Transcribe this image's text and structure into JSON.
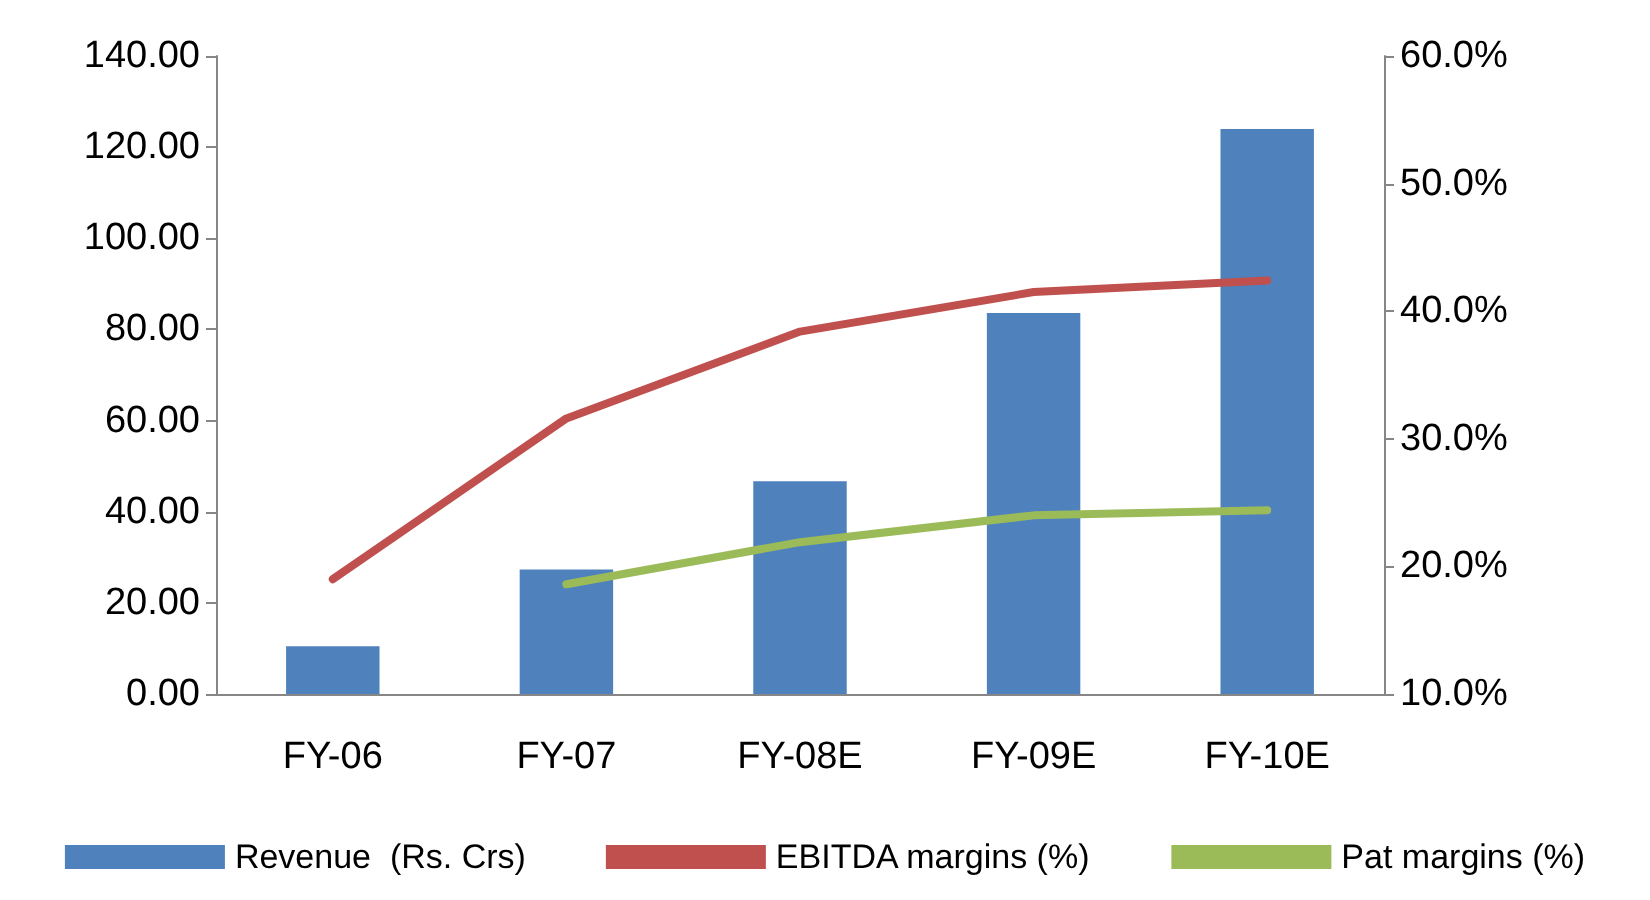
{
  "chart_data": {
    "type": "bar",
    "categories": [
      "FY-06",
      "FY-07",
      "FY-08E",
      "FY-09E",
      "FY-10E"
    ],
    "series": [
      {
        "name": "Revenue  (Rs. Crs)",
        "color": "#4f81bd",
        "values": [
          10.5,
          27.3,
          46.7,
          83.6,
          124
        ]
      },
      {
        "name": "EBITDA margins (%)",
        "type": "line",
        "axis": "y2",
        "color": "#c0504d",
        "values": [
          19.0,
          31.6,
          38.4,
          41.5,
          42.4
        ]
      },
      {
        "name": "Pat margins (%)",
        "type": "line",
        "axis": "y2",
        "color": "#9bbb59",
        "values": [
          null,
          18.6,
          21.9,
          24.0,
          24.4
        ]
      }
    ],
    "ylim": [
      0,
      140
    ],
    "yticks": [
      {
        "value": 0,
        "label": "0.00"
      },
      {
        "value": 20,
        "label": "20.00"
      },
      {
        "value": 40,
        "label": "40.00"
      },
      {
        "value": 60,
        "label": "60.00"
      },
      {
        "value": 80,
        "label": "80.00"
      },
      {
        "value": 100,
        "label": "100.00"
      },
      {
        "value": 120,
        "label": "120.00"
      },
      {
        "value": 140,
        "label": "140.00"
      }
    ],
    "y2lim": [
      10,
      60
    ],
    "y2ticks": [
      {
        "value": 10,
        "label": "10.0%"
      },
      {
        "value": 20,
        "label": "20.0%"
      },
      {
        "value": 30,
        "label": "30.0%"
      },
      {
        "value": 40,
        "label": "40.0%"
      },
      {
        "value": 50,
        "label": "50.0%"
      },
      {
        "value": 60,
        "label": "60.0%"
      }
    ],
    "grid": false,
    "legend": "bottom",
    "marker": "none",
    "line_style": "solid"
  }
}
